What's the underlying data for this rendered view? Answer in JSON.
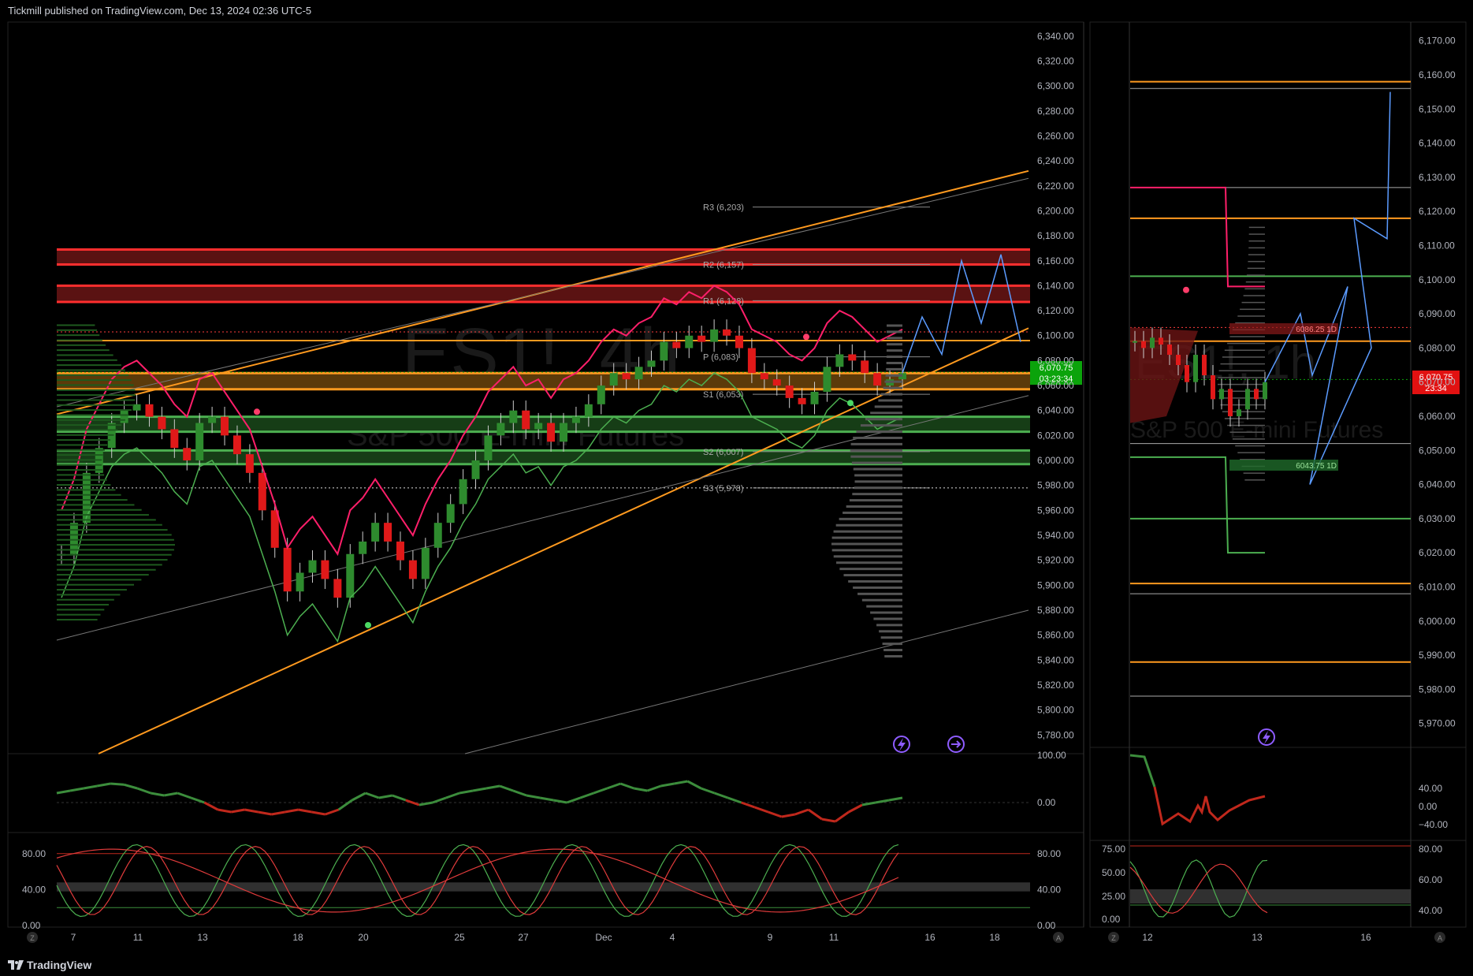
{
  "header": {
    "publisher_line": "Tickmill published on TradingView.com, Dec 13, 2024 02:36 UTC-5"
  },
  "footer": {
    "brand": "TradingView"
  },
  "colors": {
    "background": "#000000",
    "up": "#2e8b2e",
    "down": "#e01919",
    "orange": "#ff9a1f",
    "red_zone": "#ff2e2e",
    "green_zone": "#4caf50",
    "pink": "#ff1f6a",
    "label_price": "#0ba30b",
    "label_red": "#e11111"
  },
  "chart_data": [
    {
      "type": "line",
      "panel": "main-4h",
      "watermark_symbol": "ES1!, 4h",
      "watermark_name": "S&P 500 E-mini Futures",
      "price_label": "6,070.75",
      "countdown_label": "03:23:34",
      "ylim": [
        5765,
        6350
      ],
      "y_ticks": [
        "6,340.00",
        "6,320.00",
        "6,300.00",
        "6,280.00",
        "6,260.00",
        "6,240.00",
        "6,220.00",
        "6,200.00",
        "6,180.00",
        "6,160.00",
        "6,140.00",
        "6,120.00",
        "6,100.00",
        "6,080.00",
        "6,060.00",
        "6,040.00",
        "6,020.00",
        "6,000.00",
        "5,980.00",
        "5,960.00",
        "5,940.00",
        "5,920.00",
        "5,900.00",
        "5,880.00",
        "5,860.00",
        "5,840.00",
        "5,820.00",
        "5,800.00",
        "5,780.00"
      ],
      "x_ticks": [
        "7",
        "11",
        "13",
        "18",
        "20",
        "25",
        "27",
        "Dec",
        "4",
        "9",
        "11",
        "16",
        "18"
      ],
      "pivots": [
        {
          "label": "R3 (6,203)",
          "value": 6203
        },
        {
          "label": "R2 (6,157)",
          "value": 6157
        },
        {
          "label": "R1 (6,128)",
          "value": 6128
        },
        {
          "label": "P (6,083)",
          "value": 6083
        },
        {
          "label": "S1 (6,053)",
          "value": 6053
        },
        {
          "label": "S2 (6,007)",
          "value": 6007
        },
        {
          "label": "S3 (5,978)",
          "value": 5978
        }
      ],
      "red_zones": [
        [
          6157,
          6169
        ],
        [
          6127,
          6140
        ]
      ],
      "orange_zones": [
        [
          6057,
          6070
        ]
      ],
      "green_zones": [
        [
          6023,
          6035
        ],
        [
          5997,
          6008
        ]
      ],
      "orange_lines": [
        6096
      ],
      "close_series": [
        5925,
        5950,
        5990,
        6010,
        6030,
        6040,
        6045,
        6035,
        6025,
        6010,
        6000,
        6030,
        6035,
        6020,
        6005,
        5990,
        5960,
        5930,
        5895,
        5910,
        5920,
        5905,
        5890,
        5925,
        5935,
        5950,
        5935,
        5920,
        5905,
        5930,
        5950,
        5965,
        5985,
        6000,
        6020,
        6030,
        6040,
        6025,
        6030,
        6015,
        6030,
        6035,
        6045,
        6060,
        6070,
        6065,
        6075,
        6080,
        6095,
        6090,
        6100,
        6095,
        6105,
        6100,
        6090,
        6070,
        6065,
        6060,
        6050,
        6045,
        6055,
        6075,
        6085,
        6080,
        6070,
        6060,
        6065,
        6070
      ],
      "forecast_path": [
        6070,
        6115,
        6085,
        6160,
        6110,
        6165,
        6095
      ]
    },
    {
      "type": "line",
      "panel": "main-oscillator",
      "y_ticks": [
        "100.00",
        "0.00"
      ],
      "ylim": [
        -60,
        100
      ],
      "values": [
        20,
        25,
        30,
        35,
        40,
        38,
        30,
        20,
        15,
        20,
        10,
        0,
        -15,
        -20,
        -15,
        -20,
        -25,
        -20,
        -15,
        -20,
        -25,
        -15,
        5,
        20,
        10,
        15,
        5,
        -5,
        0,
        10,
        20,
        25,
        30,
        35,
        25,
        15,
        10,
        5,
        0,
        10,
        20,
        30,
        40,
        30,
        25,
        35,
        40,
        45,
        30,
        20,
        10,
        0,
        -10,
        -20,
        -30,
        -25,
        -15,
        -35,
        -40,
        -20,
        -5,
        0,
        5,
        10
      ]
    },
    {
      "type": "line",
      "panel": "main-stochastic",
      "y_ticks": [
        "80.00",
        "40.00",
        "0.00"
      ],
      "ylim": [
        0,
        100
      ],
      "right_ticks": [
        "80.00",
        "40.00",
        "0.00"
      ]
    },
    {
      "type": "line",
      "panel": "side-1h",
      "watermark_symbol": "ES1!, 1h",
      "watermark_name": "S&P 500 E-mini Futures",
      "price_label": "6,070.75",
      "countdown_label": "23:34",
      "ylim": [
        5963,
        6175
      ],
      "y_ticks": [
        "6,170.00",
        "6,160.00",
        "6,150.00",
        "6,140.00",
        "6,130.00",
        "6,120.00",
        "6,110.00",
        "6,100.00",
        "6,090.00",
        "6,080.00",
        "6,070.00",
        "6,060.00",
        "6,050.00",
        "6,040.00",
        "6,030.00",
        "6,020.00",
        "6,010.00",
        "6,000.00",
        "5,990.00",
        "5,980.00",
        "5,970.00"
      ],
      "x_ticks": [
        "12",
        "13",
        "16"
      ],
      "zone_label_upper": "6086.25 1D",
      "zone_label_lower": "6043.75 1D",
      "close_series": [
        6082,
        6080,
        6083,
        6081,
        6078,
        6075,
        6070,
        6078,
        6072,
        6065,
        6068,
        6060,
        6062,
        6068,
        6065,
        6070
      ],
      "forecast_path": [
        6070,
        6090,
        6072,
        6098,
        6040,
        6080,
        6118,
        6112,
        6155
      ]
    },
    {
      "type": "line",
      "panel": "side-oscillator",
      "y_ticks": [
        "40.00",
        "0.00",
        "−40.00"
      ]
    },
    {
      "type": "line",
      "panel": "side-stochastic",
      "y_ticks": [
        "75.00",
        "50.00",
        "25.00",
        "0.00"
      ],
      "right_ticks": [
        "80.00",
        "60.00",
        "40.00"
      ]
    }
  ]
}
